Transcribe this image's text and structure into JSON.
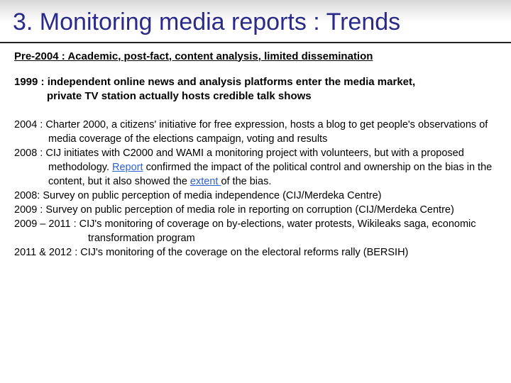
{
  "colors": {
    "title_color": "#2a2a8a",
    "text_color": "#000000",
    "link_color": "#2f5fcf",
    "title_bg_top": "#d6d6d6",
    "title_bg_bottom": "#ffffff",
    "rule_color": "#222222"
  },
  "typography": {
    "title_fontsize_pt": 26,
    "bold_line_fontsize_pt": 11,
    "body_fontsize_pt": 11,
    "font_family": "Arial"
  },
  "title": "3. Monitoring media reports : Trends",
  "pre2004": "Pre-2004 : Academic, post-fact, content analysis, limited dissemination",
  "year1999_a": "1999 : independent online news and analysis platforms enter the media market,",
  "year1999_b": "private TV station actually hosts credible talk shows",
  "items": [
    {
      "prefix": "2004 : ",
      "text": "Charter 2000, a citizens' initiative for free expression, hosts a blog to get people's observations of media coverage of the elections campaign, voting and results"
    },
    {
      "prefix": "2008 : ",
      "text_a": "CIJ initiates with C2000 and WAMI a monitoring project with volunteers, but with a proposed methodology. ",
      "link1": "Report",
      "text_b": " confirmed the impact of the political control and ownership on the bias in the content, but it also showed the ",
      "link2": "extent ",
      "text_c": "of the bias."
    },
    {
      "prefix": "2008: ",
      "text": "Survey on public perception of media independence (CIJ/Merdeka Centre)"
    },
    {
      "prefix": "2009 : ",
      "text": "Survey on public perception of media role in reporting on corruption (CIJ/Merdeka Centre)"
    },
    {
      "prefix": "2009 – 2011 : ",
      "text": "CIJ's monitoring of coverage on by-elections, water protests, Wikileaks saga, economic transformation program"
    },
    {
      "prefix": "2011 & 2012 : ",
      "text": "CIJ's monitoring of the coverage on the electoral reforms rally (BERSIH)"
    }
  ]
}
